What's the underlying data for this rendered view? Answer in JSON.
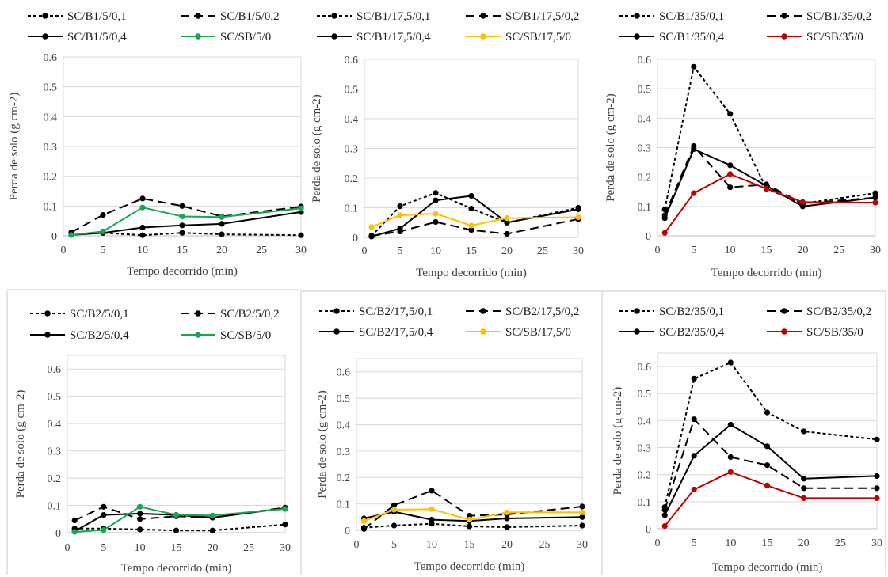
{
  "chart_data": [
    {
      "type": "line",
      "panel": "top-left",
      "xlabel": "Tempo decorrido (min)",
      "ylabel": "Perda de solo  (g cm-2)",
      "x": [
        1,
        5,
        10,
        15,
        20,
        30
      ],
      "xlim": [
        0,
        30
      ],
      "xticks": [
        0,
        5,
        10,
        15,
        20,
        25,
        30
      ],
      "ylim": [
        0,
        0.6
      ],
      "yticks": [
        0,
        0.1,
        0.2,
        0.3,
        0.4,
        0.5,
        0.6
      ],
      "grid": "horizontal",
      "legend_position": "top",
      "series": [
        {
          "name": "SC/B1/5/0,1",
          "color": "#000000",
          "dash": "short",
          "values": [
            0.005,
            0.01,
            0.002,
            0.01,
            0.005,
            0.002
          ]
        },
        {
          "name": "SC/B1/5/0,2",
          "color": "#000000",
          "dash": "long",
          "values": [
            0.012,
            0.07,
            0.125,
            0.1,
            0.065,
            0.098
          ]
        },
        {
          "name": "SC/B1/5/0,4",
          "color": "#000000",
          "dash": "solid",
          "values": [
            0.003,
            0.01,
            0.028,
            0.035,
            0.04,
            0.08
          ]
        },
        {
          "name": "SC/SB/5/0",
          "color": "#1aa650",
          "dash": "solid",
          "values": [
            0.003,
            0.015,
            0.095,
            0.065,
            0.063,
            0.092
          ]
        }
      ]
    },
    {
      "type": "line",
      "panel": "top-middle",
      "xlabel": "Tempo decorrido (min)",
      "ylabel": "Perda de solo  (g cm-2)",
      "x": [
        1,
        5,
        10,
        15,
        20,
        30
      ],
      "xlim": [
        0,
        30
      ],
      "xticks": [
        0,
        5,
        10,
        15,
        20,
        25,
        30
      ],
      "ylim": [
        0,
        0.6
      ],
      "yticks": [
        0,
        0.1,
        0.2,
        0.3,
        0.4,
        0.5,
        0.6
      ],
      "grid": "horizontal",
      "legend_position": "top",
      "series": [
        {
          "name": "SC/B1/17,5/0,1",
          "color": "#000000",
          "dash": "short",
          "values": [
            0.005,
            0.105,
            0.15,
            0.097,
            0.05,
            0.1
          ]
        },
        {
          "name": "SC/B1/17,5/0,2",
          "color": "#000000",
          "dash": "long",
          "values": [
            0.005,
            0.02,
            0.052,
            0.025,
            0.012,
            0.062
          ]
        },
        {
          "name": "SC/B1/17,5/0,4",
          "color": "#000000",
          "dash": "solid",
          "values": [
            0.003,
            0.03,
            0.125,
            0.14,
            0.05,
            0.095
          ]
        },
        {
          "name": "SC/SB/17,5/0",
          "color": "#ffc000",
          "dash": "solid",
          "values": [
            0.035,
            0.075,
            0.08,
            0.04,
            0.065,
            0.068
          ]
        }
      ]
    },
    {
      "type": "line",
      "panel": "top-right",
      "xlabel": "Tempo decorrido (min)",
      "ylabel": "Perda de solo  (g cm-2)",
      "x": [
        1,
        5,
        10,
        15,
        20,
        30
      ],
      "xlim": [
        0,
        30
      ],
      "xticks": [
        0,
        5,
        10,
        15,
        20,
        25,
        30
      ],
      "ylim": [
        0,
        0.6
      ],
      "yticks": [
        0,
        0.1,
        0.2,
        0.3,
        0.4,
        0.5,
        0.6
      ],
      "grid": "horizontal",
      "legend_position": "top",
      "series": [
        {
          "name": "SC/B1/35/0,1",
          "color": "#000000",
          "dash": "short",
          "values": [
            0.09,
            0.575,
            0.415,
            0.16,
            0.11,
            0.145
          ]
        },
        {
          "name": "SC/B1/35/0,2",
          "color": "#000000",
          "dash": "long",
          "values": [
            0.07,
            0.305,
            0.165,
            0.175,
            0.11,
            0.13
          ]
        },
        {
          "name": "SC/B1/35/0,4",
          "color": "#000000",
          "dash": "solid",
          "values": [
            0.06,
            0.295,
            0.24,
            0.17,
            0.1,
            0.13
          ]
        },
        {
          "name": "SC/SB/35/0",
          "color": "#c00000",
          "dash": "solid",
          "values": [
            0.01,
            0.145,
            0.21,
            0.16,
            0.115,
            0.113
          ]
        }
      ]
    },
    {
      "type": "line",
      "panel": "bottom-left",
      "xlabel": "Tempo decorrido (min)",
      "ylabel": "Perda de solo  (g cm-2)",
      "x": [
        1,
        5,
        10,
        15,
        20,
        30
      ],
      "xlim": [
        0,
        30
      ],
      "xticks": [
        0,
        5,
        10,
        15,
        20,
        25,
        30
      ],
      "ylim": [
        0,
        0.65
      ],
      "yticks": [
        0,
        0.1,
        0.2,
        0.3,
        0.4,
        0.5,
        0.6
      ],
      "grid": "horizontal",
      "legend_position": "top",
      "series": [
        {
          "name": "SC/B2/5/0,1",
          "color": "#000000",
          "dash": "short",
          "values": [
            0.015,
            0.015,
            0.012,
            0.008,
            0.008,
            0.03
          ]
        },
        {
          "name": "SC/B2/5/0,2",
          "color": "#000000",
          "dash": "long",
          "values": [
            0.045,
            0.095,
            0.05,
            0.06,
            0.055,
            0.092
          ]
        },
        {
          "name": "SC/B2/5/0,4",
          "color": "#000000",
          "dash": "solid",
          "values": [
            0.005,
            0.065,
            0.07,
            0.065,
            0.055,
            0.09
          ]
        },
        {
          "name": "SC/SB/5/0",
          "color": "#1aa650",
          "dash": "solid",
          "values": [
            0.003,
            0.01,
            0.095,
            0.065,
            0.063,
            0.087
          ]
        }
      ]
    },
    {
      "type": "line",
      "panel": "bottom-middle",
      "xlabel": "Tempo decorrido (min)",
      "ylabel": "Perda de solo  (g cm-2)",
      "x": [
        1,
        5,
        10,
        15,
        20,
        30
      ],
      "xlim": [
        0,
        30
      ],
      "xticks": [
        0,
        5,
        10,
        15,
        20,
        25,
        30
      ],
      "ylim": [
        0,
        0.65
      ],
      "yticks": [
        0,
        0.1,
        0.2,
        0.3,
        0.4,
        0.5,
        0.6
      ],
      "grid": "horizontal",
      "legend_position": "top",
      "series": [
        {
          "name": "SC/B2/17,5/0,1",
          "color": "#000000",
          "dash": "short",
          "values": [
            0.01,
            0.018,
            0.025,
            0.015,
            0.012,
            0.018
          ]
        },
        {
          "name": "SC/B2/17,5/0,2",
          "color": "#000000",
          "dash": "long",
          "values": [
            0.005,
            0.095,
            0.15,
            0.055,
            0.06,
            0.09
          ]
        },
        {
          "name": "SC/B2/17,5/0,4",
          "color": "#000000",
          "dash": "solid",
          "values": [
            0.045,
            0.07,
            0.04,
            0.035,
            0.045,
            0.05
          ]
        },
        {
          "name": "SC/SB/17,5/0",
          "color": "#ffc000",
          "dash": "solid",
          "values": [
            0.035,
            0.078,
            0.08,
            0.04,
            0.068,
            0.068
          ]
        }
      ]
    },
    {
      "type": "line",
      "panel": "bottom-right",
      "xlabel": "Tempo decorrido (min)",
      "ylabel": "Perda de solo  (g cm-2)",
      "x": [
        1,
        5,
        10,
        15,
        20,
        30
      ],
      "xlim": [
        0,
        30
      ],
      "xticks": [
        0,
        5,
        10,
        15,
        20,
        25,
        30
      ],
      "ylim": [
        0,
        0.65
      ],
      "yticks": [
        0,
        0.1,
        0.2,
        0.3,
        0.4,
        0.5,
        0.6
      ],
      "grid": "horizontal",
      "legend_position": "top",
      "series": [
        {
          "name": "SC/B2/35/0,1",
          "color": "#000000",
          "dash": "short",
          "values": [
            0.08,
            0.555,
            0.615,
            0.43,
            0.36,
            0.33
          ]
        },
        {
          "name": "SC/B2/35/0,2",
          "color": "#000000",
          "dash": "long",
          "values": [
            0.07,
            0.405,
            0.265,
            0.235,
            0.15,
            0.15
          ]
        },
        {
          "name": "SC/B2/35/0,4",
          "color": "#000000",
          "dash": "solid",
          "values": [
            0.05,
            0.27,
            0.385,
            0.305,
            0.185,
            0.195
          ]
        },
        {
          "name": "SC/SB/35/0",
          "color": "#c00000",
          "dash": "solid",
          "values": [
            0.01,
            0.145,
            0.21,
            0.16,
            0.113,
            0.113
          ]
        }
      ]
    }
  ]
}
